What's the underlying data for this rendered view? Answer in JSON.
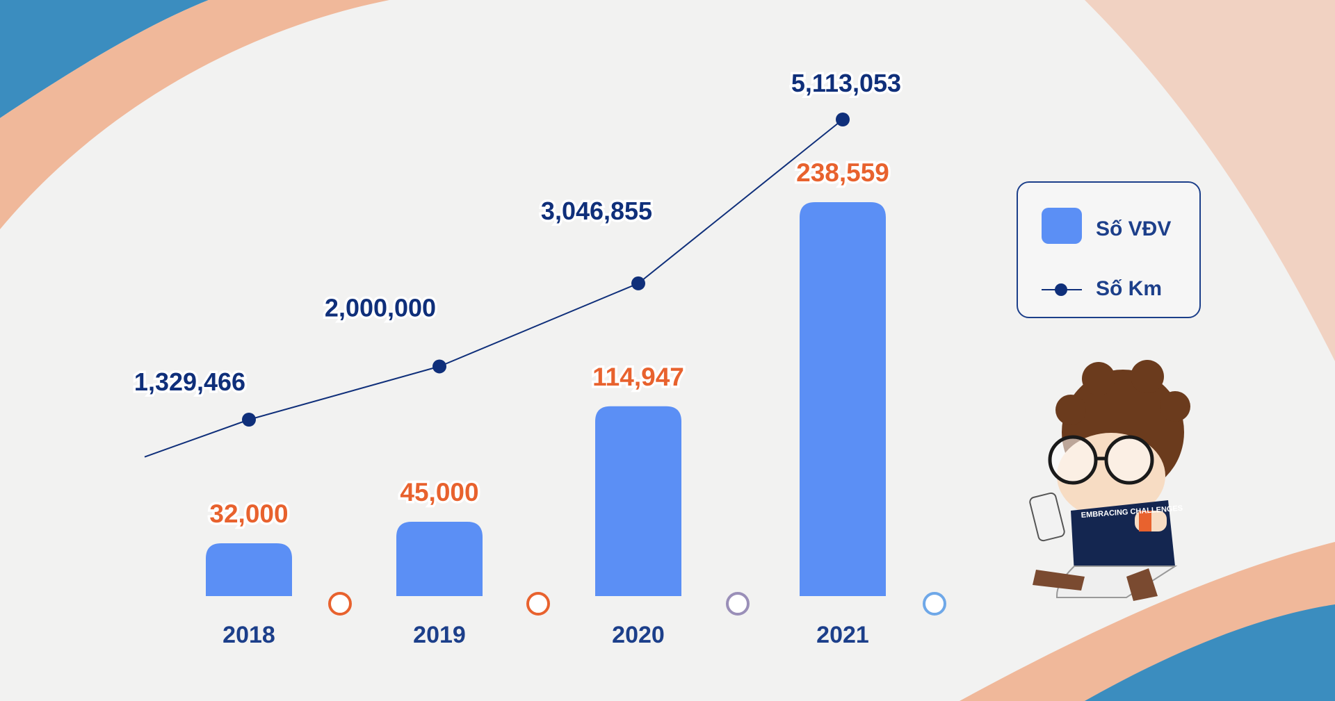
{
  "chart_data": {
    "type": "bar",
    "categories": [
      "2018",
      "2019",
      "2020",
      "2021"
    ],
    "series": [
      {
        "name": "Số VĐV",
        "type": "bar",
        "values": [
          32000,
          45000,
          114947,
          238559
        ],
        "color": "#5b8ff5"
      },
      {
        "name": "Số Km",
        "type": "line",
        "values": [
          1329466,
          2000000,
          3046855,
          5113053
        ],
        "color": "#0f2f7a"
      }
    ],
    "bar_labels": [
      "32,000",
      "45,000",
      "114,947",
      "238,559"
    ],
    "line_labels": [
      "1,329,466",
      "2,000,000",
      "3,046,855",
      "5,113,053"
    ],
    "colors": {
      "bar": "#5b8ff5",
      "bar_label": "#e8622e",
      "line": "#0f2f7a",
      "timeline_start": "#e8622e",
      "timeline_end": "#6fa8e8",
      "year_label": "#1c3f8a"
    },
    "legend": {
      "placement": "right"
    },
    "grid": false
  },
  "legend": {
    "bar_label": "Số VĐV",
    "line_label": "Số Km",
    "bar_icon": "blue-square-icon",
    "line_icon": "line-with-dot-icon"
  },
  "decorations": {
    "mascot": "curly-haired-runner-mascot",
    "shirt_text": "EMBRACING CHALLENGES"
  }
}
